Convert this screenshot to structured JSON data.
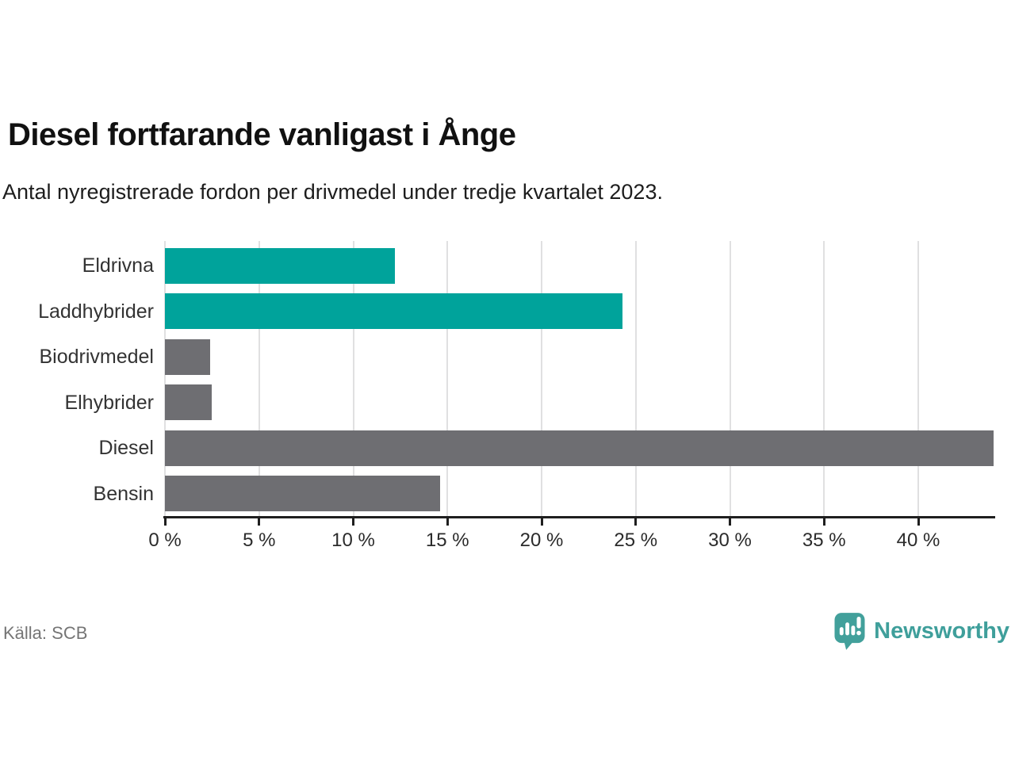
{
  "header": {
    "title": "Diesel fortfarande vanligast i Ånge",
    "subtitle": "Antal nyregistrerade fordon per drivmedel under tredje kvartalet 2023."
  },
  "footer": {
    "source": "Källa: SCB",
    "brand_name": "Newsworthy",
    "brand_color": "#3f9f9b"
  },
  "chart_data": {
    "type": "bar",
    "orientation": "horizontal",
    "title": "Diesel fortfarande vanligast i Ånge",
    "subtitle": "Antal nyregistrerade fordon per drivmedel under tredje kvartalet 2023.",
    "categories": [
      "Eldrivna",
      "Laddhybrider",
      "Biodrivmedel",
      "Elhybrider",
      "Diesel",
      "Bensin"
    ],
    "values": [
      12.2,
      24.3,
      2.4,
      2.5,
      44.0,
      14.6
    ],
    "unit": "%",
    "bar_colors": [
      "#00a39b",
      "#00a39b",
      "#6e6e72",
      "#6e6e72",
      "#6e6e72",
      "#6e6e72"
    ],
    "accent_color": "#00a39b",
    "default_color": "#6e6e72",
    "xlim": [
      0,
      44
    ],
    "x_ticks": [
      0,
      5,
      10,
      15,
      20,
      25,
      30,
      35,
      40
    ],
    "x_tick_labels": [
      "0 %",
      "5 %",
      "10 %",
      "15 %",
      "20 %",
      "25 %",
      "30 %",
      "35 %",
      "40 %"
    ],
    "xlabel": "",
    "ylabel": "",
    "grid": "vertical",
    "gridline_color": "#e0e0e1",
    "legend": false,
    "source": "Källa: SCB"
  }
}
